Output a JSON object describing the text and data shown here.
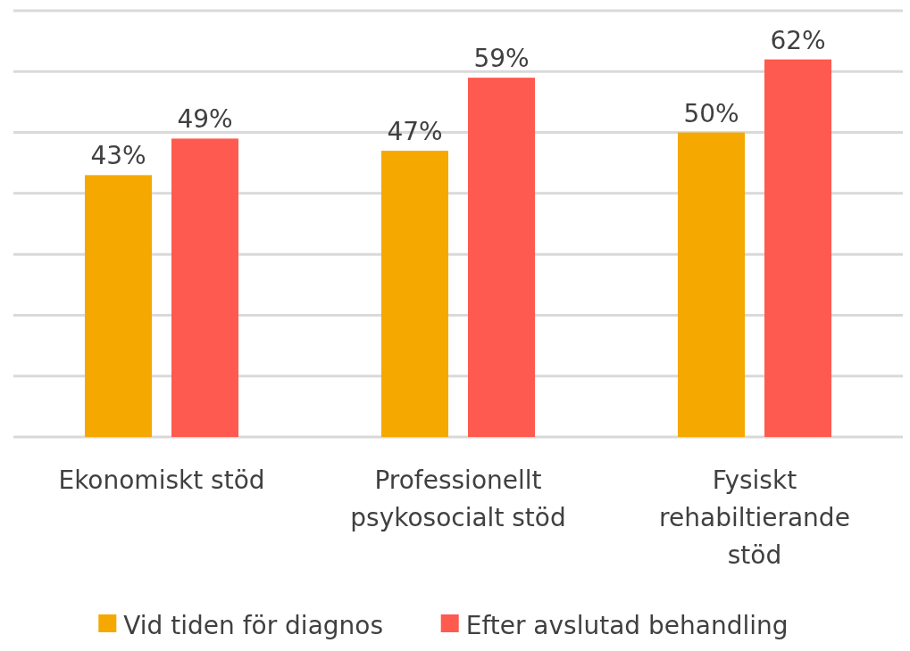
{
  "chart_data": {
    "type": "bar",
    "categories": [
      "Ekonomiskt stöd",
      "Professionellt psykosocialt stöd",
      "Fysiskt rehabiltierande stöd"
    ],
    "series": [
      {
        "name": "Vid tiden för diagnos",
        "color": "#f5a800",
        "values": [
          43,
          47,
          50
        ],
        "value_labels": [
          "43%",
          "47%",
          "50%"
        ]
      },
      {
        "name": "Efter avslutad behandling",
        "color": "#ff5a4f",
        "values": [
          49,
          59,
          62
        ],
        "value_labels": [
          "49%",
          "59%",
          "62%"
        ]
      }
    ],
    "ylim": [
      0,
      70
    ],
    "yticks": [
      {
        "value": 0,
        "label": null
      },
      {
        "value": 10,
        "label": null
      },
      {
        "value": 20,
        "label": null
      },
      {
        "value": 30,
        "label": null
      },
      {
        "value": 40,
        "label": null
      },
      {
        "value": 50,
        "label": null
      },
      {
        "value": 60,
        "label": null
      },
      {
        "value": 70,
        "label": null
      }
    ],
    "grid": "y",
    "legend": "bottom",
    "tick_labels": "x"
  }
}
